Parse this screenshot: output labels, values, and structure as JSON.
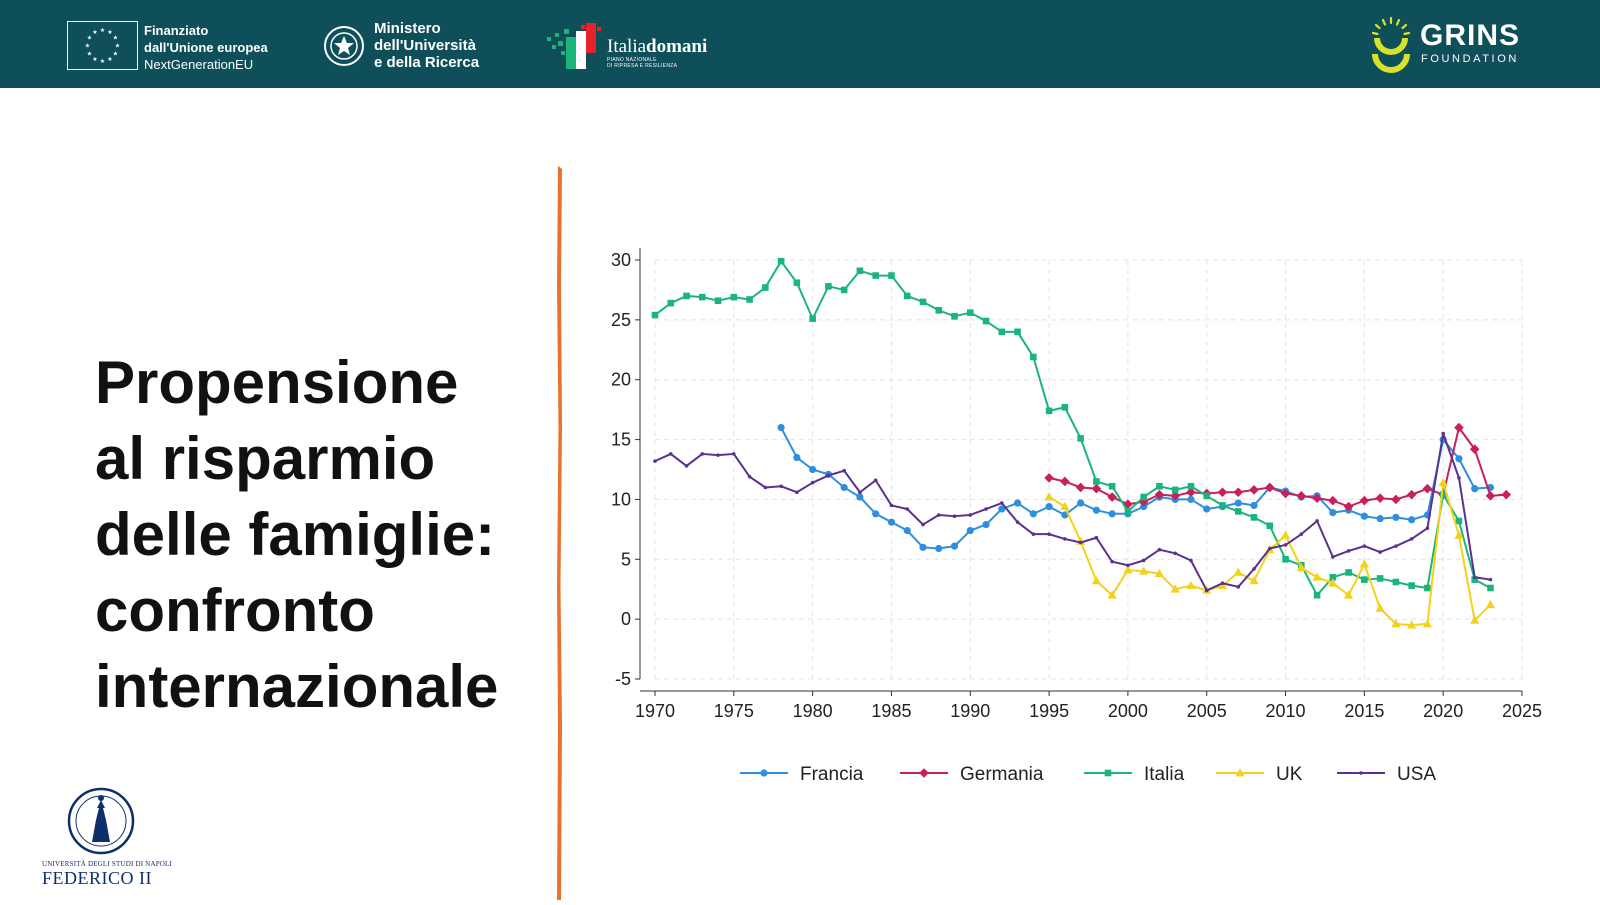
{
  "header": {
    "eu_funding": {
      "line1": "Finanziato",
      "line2": "dall'Unione europea",
      "line3": "NextGenerationEU"
    },
    "ministry": {
      "line1": "Ministero",
      "line2": "dell'Università",
      "line3": "e della Ricerca"
    },
    "italiadomani": {
      "name_part1": "Italia",
      "name_part2": "domani",
      "sub1": "PIANO NAZIONALE",
      "sub2": "DI RIPRESA E RESILIENZA"
    },
    "grins": {
      "name": "GRINS",
      "sub": "FOUNDATION"
    }
  },
  "slide": {
    "title_lines": [
      "Propensione",
      "al risparmio",
      "delle famiglie:",
      "confronto",
      "internazionale"
    ]
  },
  "footer": {
    "university_small": "UNIVERSITÀ DEGLI STUDI DI NAPOLI",
    "university_name": "FEDERICO II"
  },
  "colors": {
    "header_bg": "#0f4f5a",
    "divider": "#e8722c",
    "francia": "#2f8fdf",
    "germania": "#c8205a",
    "italia": "#1bb57a",
    "uk": "#f2d21a",
    "usa": "#5a3091"
  },
  "chart_data": {
    "type": "line",
    "title": "",
    "xlabel": "",
    "ylabel": "",
    "xlim": [
      1970,
      2025
    ],
    "ylim": [
      -5,
      30
    ],
    "x_ticks": [
      1970,
      1975,
      1980,
      1985,
      1990,
      1995,
      2000,
      2005,
      2010,
      2015,
      2020,
      2025
    ],
    "y_ticks": [
      -5,
      0,
      5,
      10,
      15,
      20,
      25,
      30
    ],
    "grid": true,
    "legend_position": "bottom",
    "series": [
      {
        "name": "Francia",
        "color": "#2f8fdf",
        "marker": "circle",
        "start": 1978,
        "values": [
          16.0,
          13.5,
          12.5,
          12.1,
          11.0,
          10.2,
          8.8,
          8.1,
          7.4,
          6.0,
          5.9,
          6.1,
          7.4,
          7.9,
          9.2,
          9.7,
          8.8,
          9.4,
          8.7,
          9.7,
          9.1,
          8.8,
          8.8,
          9.4,
          10.2,
          10.0,
          10.0,
          9.2,
          9.4,
          9.7,
          9.5,
          11.0,
          10.7,
          10.2,
          10.3,
          8.9,
          9.1,
          8.6,
          8.4,
          8.5,
          8.3,
          8.7,
          15.0,
          13.4,
          10.9,
          11.0
        ]
      },
      {
        "name": "Germania",
        "color": "#c8205a",
        "marker": "diamond",
        "start": 1995,
        "values": [
          11.8,
          11.5,
          11.0,
          10.9,
          10.2,
          9.6,
          9.8,
          10.4,
          10.3,
          10.6,
          10.5,
          10.6,
          10.6,
          10.8,
          11.0,
          10.5,
          10.3,
          10.1,
          9.9,
          9.4,
          9.9,
          10.1,
          10.0,
          10.4,
          10.9,
          10.4,
          16.0,
          14.2,
          10.3,
          10.4
        ]
      },
      {
        "name": "Italia",
        "color": "#1bb57a",
        "marker": "square",
        "start": 1970,
        "values": [
          25.4,
          26.4,
          27.0,
          26.9,
          26.6,
          26.9,
          26.7,
          27.7,
          29.9,
          28.1,
          25.1,
          27.8,
          27.5,
          29.1,
          28.7,
          28.7,
          27.0,
          26.5,
          25.8,
          25.3,
          25.6,
          24.9,
          24.0,
          24.0,
          21.9,
          17.4,
          17.7,
          15.1,
          11.5,
          11.1,
          9.0,
          10.2,
          11.1,
          10.8,
          11.1,
          10.3,
          9.5,
          9.0,
          8.5,
          7.8,
          5.0,
          4.5,
          2.0,
          3.5,
          3.9,
          3.3,
          3.4,
          3.1,
          2.8,
          2.6,
          10.4,
          8.2,
          3.3,
          2.6
        ]
      },
      {
        "name": "UK",
        "color": "#f2d21a",
        "marker": "triangle",
        "start": 1995,
        "values": [
          10.2,
          9.4,
          6.5,
          3.2,
          2.0,
          4.1,
          4.0,
          3.8,
          2.5,
          2.8,
          2.4,
          2.8,
          3.9,
          3.2,
          5.8,
          7.0,
          4.3,
          3.5,
          3.0,
          2.0,
          4.6,
          0.9,
          -0.4,
          -0.5,
          -0.4,
          11.4,
          7.0,
          -0.1,
          1.2
        ]
      },
      {
        "name": "USA",
        "color": "#5a3091",
        "marker": "plus",
        "start": 1970,
        "values": [
          13.2,
          13.8,
          12.8,
          13.8,
          13.7,
          13.8,
          11.9,
          11.0,
          11.1,
          10.6,
          11.4,
          12.0,
          12.4,
          10.6,
          11.6,
          9.5,
          9.2,
          7.9,
          8.7,
          8.6,
          8.7,
          9.2,
          9.7,
          8.1,
          7.1,
          7.1,
          6.7,
          6.4,
          6.8,
          4.8,
          4.5,
          4.9,
          5.8,
          5.5,
          4.9,
          2.4,
          3.0,
          2.7,
          4.2,
          5.9,
          6.2,
          7.1,
          8.2,
          5.2,
          5.7,
          6.1,
          5.6,
          6.1,
          6.7,
          7.6,
          15.5,
          11.8,
          3.5,
          3.3
        ]
      }
    ]
  }
}
